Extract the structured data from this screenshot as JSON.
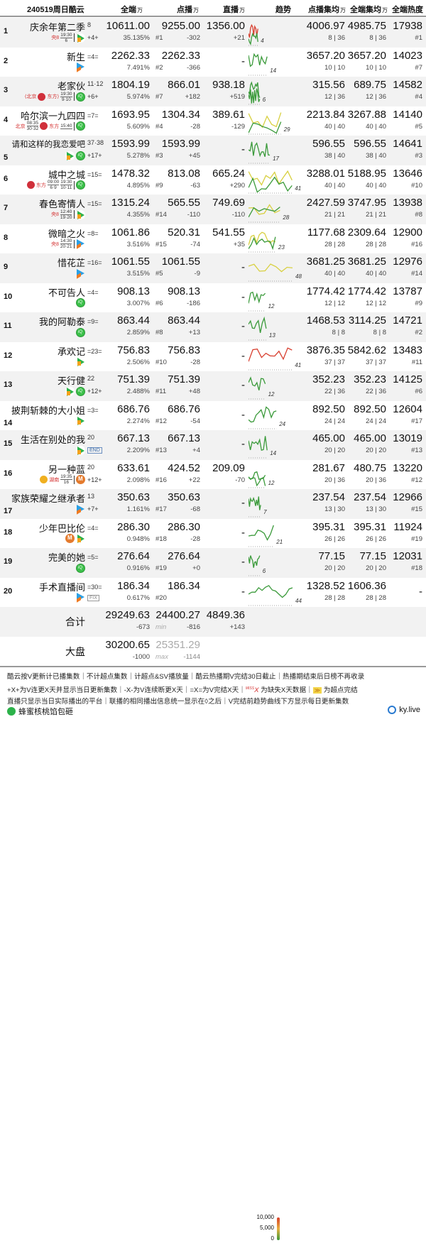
{
  "header": {
    "title": "240519周日酷云",
    "unit": "万",
    "cols": [
      "全端",
      "点播",
      "直播",
      "趋势",
      "点播集均",
      "全端集均",
      "全端热度"
    ]
  },
  "colors": {
    "trend_green": "#3a9a3a",
    "trend_yellow": "#d8d040",
    "trend_red": "#d84030",
    "alt_row": "#f2f2f2"
  },
  "rows": [
    {
      "rank": "1",
      "name": "庆余年第二季",
      "ep": "8",
      "tag": "+4+",
      "sched": [
        {
          "ch": "央8",
          "time": "19:30",
          "eps": "6"
        }
      ],
      "platforms": [
        "tencent-video"
      ],
      "total": "10611.00",
      "pct": "35.135%",
      "vod": "9255.00",
      "vod_rank": "#1",
      "vod_delta": "-302",
      "live": "1356.00",
      "live_delta": "+21",
      "trend_end": "4",
      "trend_color": "red",
      "vod_avg": "4006.97",
      "vod_avg_eps": "8 | 36",
      "all_avg": "4985.75",
      "all_avg_eps": "8 | 36",
      "heat": "17938",
      "heat_rank": "#1"
    },
    {
      "rank": "2",
      "name": "新生",
      "ep": "",
      "tag": "=4=",
      "sched": [],
      "platforms": [
        "youku"
      ],
      "total": "2262.33",
      "pct": "7.491%",
      "vod": "2262.33",
      "vod_rank": "#2",
      "vod_delta": "-366",
      "live": "-",
      "live_delta": "",
      "trend_end": "14",
      "trend_color": "green",
      "vod_avg": "3657.20",
      "vod_avg_eps": "10 | 10",
      "all_avg": "3657.20",
      "all_avg_eps": "10 | 10",
      "heat": "14023",
      "heat_rank": "#7"
    },
    {
      "rank": "3",
      "name": "老家伙",
      "ep": "11·12",
      "tag": "+6+",
      "sched": [
        {
          "ch": "⟨北京",
          "time": "",
          "eps": ""
        },
        {
          "ch": "东方⟩",
          "time": "19:30",
          "eps": "9·10"
        }
      ],
      "platforms": [
        "iqiyi"
      ],
      "total": "1804.19",
      "pct": "5.974%",
      "vod": "866.01",
      "vod_rank": "#7",
      "vod_delta": "+182",
      "live": "938.18",
      "live_delta": "+519",
      "trend_end": "6",
      "trend_color": "green",
      "vod_avg": "315.56",
      "vod_avg_eps": "12 | 36",
      "all_avg": "689.75",
      "all_avg_eps": "12 | 36",
      "heat": "14582",
      "heat_rank": "#4"
    },
    {
      "rank": "4",
      "name": "哈尔滨一九四四",
      "ep": "",
      "tag": "=7=",
      "sched": [
        {
          "ch": "北京",
          "time": "08:35",
          "eps": "30·32"
        },
        {
          "ch": "东方",
          "time": "15:40",
          "eps": ""
        }
      ],
      "platforms": [
        "iqiyi"
      ],
      "total": "1693.95",
      "pct": "5.609%",
      "vod": "1304.34",
      "vod_rank": "#4",
      "vod_delta": "-28",
      "live": "389.61",
      "live_delta": "-129",
      "trend_end": "29",
      "trend_color": "yellow",
      "vod_avg": "2213.84",
      "vod_avg_eps": "40 | 40",
      "all_avg": "3267.88",
      "all_avg_eps": "40 | 40",
      "heat": "14140",
      "heat_rank": "#5"
    },
    {
      "rank": "5",
      "name": "请和这样的我恋爱吧",
      "ep": "37·38",
      "tag": "+17+",
      "sched": [],
      "platforms": [
        "tencent-video",
        "iqiyi"
      ],
      "total": "1593.99",
      "pct": "5.278%",
      "vod": "1593.99",
      "vod_rank": "#3",
      "vod_delta": "+45",
      "live": "-",
      "live_delta": "",
      "trend_end": "17",
      "trend_color": "green",
      "vod_avg": "596.55",
      "vod_avg_eps": "38 | 40",
      "all_avg": "596.55",
      "all_avg_eps": "38 | 40",
      "heat": "14641",
      "heat_rank": "#3"
    },
    {
      "rank": "6",
      "name": "城中之城",
      "ep": "",
      "tag": "=15=",
      "sched": [
        {
          "ch": "东方",
          "time": "09:00",
          "eps": "6·9"
        },
        {
          "ch": "",
          "time": "19:30",
          "eps": "10·11"
        }
      ],
      "platforms": [
        "iqiyi"
      ],
      "total": "1478.32",
      "pct": "4.895%",
      "vod": "813.08",
      "vod_rank": "#9",
      "vod_delta": "-63",
      "live": "665.24",
      "live_delta": "+290",
      "trend_end": "41",
      "trend_color": "yellow",
      "vod_avg": "3288.01",
      "vod_avg_eps": "40 | 40",
      "all_avg": "5188.95",
      "all_avg_eps": "40 | 40",
      "heat": "13646",
      "heat_rank": "#10"
    },
    {
      "rank": "7",
      "name": "春色寄情人",
      "ep": "",
      "tag": "=15=",
      "sched": [
        {
          "ch": "央8",
          "time": "12:40",
          "eps": "19·20"
        }
      ],
      "platforms": [
        "tencent-video"
      ],
      "total": "1315.24",
      "pct": "4.355%",
      "vod": "565.55",
      "vod_rank": "#14",
      "vod_delta": "-110",
      "live": "749.69",
      "live_delta": "-110",
      "trend_end": "28",
      "trend_color": "yellow",
      "vod_avg": "2427.59",
      "vod_avg_eps": "21 | 21",
      "all_avg": "3747.95",
      "all_avg_eps": "21 | 21",
      "heat": "13938",
      "heat_rank": "#8"
    },
    {
      "rank": "8",
      "name": "微暗之火",
      "ep": "",
      "tag": "=8=",
      "sched": [
        {
          "ch": "央8",
          "time": "14:30",
          "eps": "20·21"
        }
      ],
      "platforms": [
        "youku"
      ],
      "total": "1061.86",
      "pct": "3.516%",
      "vod": "520.31",
      "vod_rank": "#15",
      "vod_delta": "-74",
      "live": "541.55",
      "live_delta": "+35",
      "trend_end": "23",
      "trend_color": "yellow",
      "vod_avg": "1177.68",
      "vod_avg_eps": "28 | 28",
      "all_avg": "2309.64",
      "all_avg_eps": "28 | 28",
      "heat": "12900",
      "heat_rank": "#16"
    },
    {
      "rank": "9",
      "name": "惜花芷",
      "ep": "",
      "tag": "=16=",
      "sched": [],
      "platforms": [
        "youku"
      ],
      "total": "1061.55",
      "pct": "3.515%",
      "vod": "1061.55",
      "vod_rank": "#5",
      "vod_delta": "-9",
      "live": "-",
      "live_delta": "",
      "trend_end": "48",
      "trend_color": "yellow",
      "vod_avg": "3681.25",
      "vod_avg_eps": "40 | 40",
      "all_avg": "3681.25",
      "all_avg_eps": "40 | 40",
      "heat": "12976",
      "heat_rank": "#14"
    },
    {
      "rank": "10",
      "name": "不可告人",
      "ep": "",
      "tag": "=4=",
      "sched": [],
      "platforms": [
        "iqiyi"
      ],
      "total": "908.13",
      "pct": "3.007%",
      "vod": "908.13",
      "vod_rank": "#6",
      "vod_delta": "-186",
      "live": "-",
      "live_delta": "",
      "trend_end": "12",
      "trend_color": "green",
      "vod_avg": "1774.42",
      "vod_avg_eps": "12 | 12",
      "all_avg": "1774.42",
      "all_avg_eps": "12 | 12",
      "heat": "13787",
      "heat_rank": "#9"
    },
    {
      "rank": "11",
      "name": "我的阿勒泰",
      "ep": "",
      "tag": "=9=",
      "sched": [],
      "platforms": [
        "iqiyi"
      ],
      "total": "863.44",
      "pct": "2.859%",
      "vod": "863.44",
      "vod_rank": "#8",
      "vod_delta": "+13",
      "live": "-",
      "live_delta": "",
      "trend_end": "13",
      "trend_color": "green",
      "vod_avg": "1468.53",
      "vod_avg_eps": "8 | 8",
      "all_avg": "3114.25",
      "all_avg_eps": "8 | 8",
      "heat": "14721",
      "heat_rank": "#2"
    },
    {
      "rank": "12",
      "name": "承欢记",
      "ep": "",
      "tag": "=23=",
      "sched": [],
      "platforms": [
        "tencent-video"
      ],
      "total": "756.83",
      "pct": "2.506%",
      "vod": "756.83",
      "vod_rank": "#10",
      "vod_delta": "-28",
      "live": "-",
      "live_delta": "",
      "trend_end": "41",
      "trend_color": "red",
      "vod_avg": "3876.35",
      "vod_avg_eps": "37 | 37",
      "all_avg": "5842.62",
      "all_avg_eps": "37 | 37",
      "heat": "13483",
      "heat_rank": "#11"
    },
    {
      "rank": "13",
      "name": "天行健",
      "ep": "22",
      "tag": "+12+",
      "sched": [],
      "platforms": [
        "tencent-video",
        "iqiyi"
      ],
      "total": "751.39",
      "pct": "2.488%",
      "vod": "751.39",
      "vod_rank": "#11",
      "vod_delta": "+48",
      "live": "-",
      "live_delta": "",
      "trend_end": "12",
      "trend_color": "green",
      "vod_avg": "352.23",
      "vod_avg_eps": "22 | 36",
      "all_avg": "352.23",
      "all_avg_eps": "22 | 36",
      "heat": "14125",
      "heat_rank": "#6"
    },
    {
      "rank": "14",
      "name": "披荆斩棘的大小姐",
      "ep": "",
      "tag": "=3=",
      "sched": [],
      "platforms": [
        "tencent-video"
      ],
      "total": "686.76",
      "pct": "2.274%",
      "vod": "686.76",
      "vod_rank": "#12",
      "vod_delta": "-54",
      "live": "-",
      "live_delta": "",
      "trend_end": "24",
      "trend_color": "green",
      "vod_avg": "892.50",
      "vod_avg_eps": "24 | 24",
      "all_avg": "892.50",
      "all_avg_eps": "24 | 24",
      "heat": "12604",
      "heat_rank": "#17"
    },
    {
      "rank": "15",
      "name": "生活在别处的我",
      "ep": "20",
      "tag": "",
      "badge": "END",
      "sched": [],
      "platforms": [
        "tencent-video"
      ],
      "total": "667.13",
      "pct": "2.209%",
      "vod": "667.13",
      "vod_rank": "#13",
      "vod_delta": "+4",
      "live": "-",
      "live_delta": "",
      "trend_end": "14",
      "trend_color": "green",
      "vod_avg": "465.00",
      "vod_avg_eps": "20 | 20",
      "all_avg": "465.00",
      "all_avg_eps": "20 | 20",
      "heat": "13019",
      "heat_rank": "#13"
    },
    {
      "rank": "16",
      "name": "另一种蓝",
      "ep": "20",
      "tag": "+12+",
      "sched": [
        {
          "ch": "湖南",
          "time": "19:35",
          "eps": "16"
        }
      ],
      "platforms": [
        "mango-tv"
      ],
      "total": "633.61",
      "pct": "2.098%",
      "vod": "424.52",
      "vod_rank": "#16",
      "vod_delta": "+22",
      "live": "209.09",
      "live_delta": "-70",
      "trend_end": "12",
      "trend_color": "green",
      "vod_avg": "281.67",
      "vod_avg_eps": "20 | 36",
      "all_avg": "480.75",
      "all_avg_eps": "20 | 36",
      "heat": "13220",
      "heat_rank": "#12"
    },
    {
      "rank": "17",
      "name": "家族荣耀之继承者",
      "ep": "13",
      "tag": "+7+",
      "sched": [],
      "platforms": [
        "youku"
      ],
      "total": "350.63",
      "pct": "1.161%",
      "vod": "350.63",
      "vod_rank": "#17",
      "vod_delta": "-68",
      "live": "-",
      "live_delta": "",
      "trend_end": "7",
      "trend_color": "green",
      "vod_avg": "237.54",
      "vod_avg_eps": "13 | 30",
      "all_avg": "237.54",
      "all_avg_eps": "13 | 30",
      "heat": "12966",
      "heat_rank": "#15"
    },
    {
      "rank": "18",
      "name": "少年巴比伦",
      "ep": "",
      "tag": "=4=",
      "sched": [],
      "platforms": [
        "mango-tv",
        "tencent-video"
      ],
      "total": "286.30",
      "pct": "0.948%",
      "vod": "286.30",
      "vod_rank": "#18",
      "vod_delta": "-28",
      "live": "-",
      "live_delta": "",
      "trend_end": "21",
      "trend_color": "green",
      "vod_avg": "395.31",
      "vod_avg_eps": "26 | 26",
      "all_avg": "395.31",
      "all_avg_eps": "26 | 26",
      "heat": "11924",
      "heat_rank": "#19"
    },
    {
      "rank": "19",
      "name": "完美的她",
      "ep": "",
      "tag": "=5=",
      "sched": [],
      "platforms": [
        "iqiyi"
      ],
      "total": "276.64",
      "pct": "0.916%",
      "vod": "276.64",
      "vod_rank": "#19",
      "vod_delta": "+0",
      "live": "-",
      "live_delta": "",
      "trend_end": "6",
      "trend_color": "green",
      "vod_avg": "77.15",
      "vod_avg_eps": "20 | 20",
      "all_avg": "77.15",
      "all_avg_eps": "20 | 20",
      "heat": "12031",
      "heat_rank": "#18"
    },
    {
      "rank": "20",
      "name": "手术直播间",
      "ep": "",
      "tag": "=30=",
      "badge": "FIX",
      "sched": [],
      "platforms": [
        "youku"
      ],
      "total": "186.34",
      "pct": "0.617%",
      "vod": "186.34",
      "vod_rank": "#20",
      "vod_delta": "",
      "live": "-",
      "live_delta": "",
      "trend_end": "44",
      "trend_color": "green",
      "vod_avg": "1328.52",
      "vod_avg_eps": "28 | 28",
      "all_avg": "1606.36",
      "all_avg_eps": "28 | 28",
      "heat": "-",
      "heat_rank": ""
    }
  ],
  "summary": {
    "label": "合计",
    "total": "29249.63",
    "total_delta": "-673",
    "vod": "24400.27",
    "vod_note": "min",
    "vod_delta": "-816",
    "live": "4849.36",
    "live_delta": "+143",
    "legend": [
      "10,000",
      "5,000",
      "0"
    ]
  },
  "market": {
    "label": "大盘",
    "total": "30200.65",
    "total_delta": "-1000",
    "vod": "25351.29",
    "vod_note": "max",
    "vod_delta": "-1144"
  },
  "footer": {
    "lines": [
      "酷云按V更新计已播集数｜不计超点集数｜计超点&SV播放量｜酷云热播期V完结30日截止｜热播期结束后日榜不再收录",
      "+X+为V连更X天并显示当日更新集数｜-X-为V连续断更X天｜=X=为V完结X天｜",
      "直播只显示当日实际播出的平台｜联播的相同播出信息统一显示在◊之后｜V完结前趋势曲线下方显示每日更新集数"
    ],
    "miss_label": "MISS",
    "miss_x": "X",
    "miss_text": "为缺失X天数据｜",
    "super_text": "为超点完结",
    "author": "蜂蜜核桃馅包砸",
    "site": "ky.live"
  }
}
